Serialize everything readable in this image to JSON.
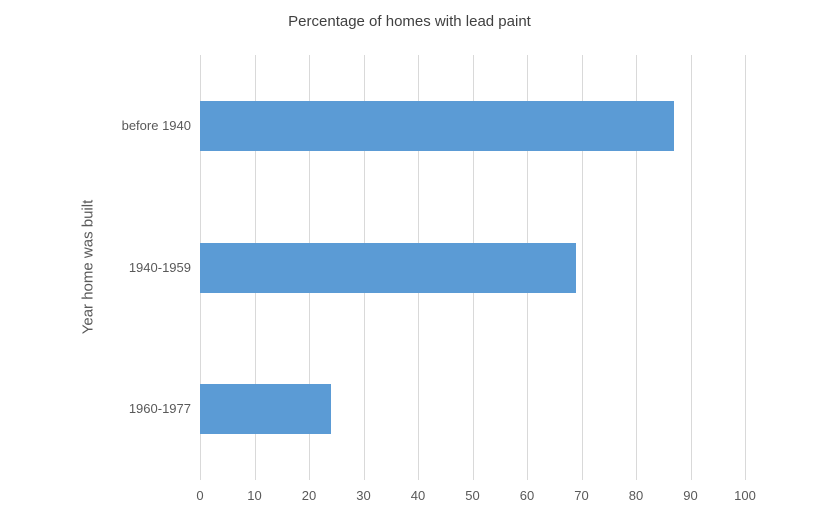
{
  "chart_data": {
    "type": "bar",
    "orientation": "horizontal",
    "title": "Percentage of homes with lead paint",
    "xlabel": "",
    "ylabel": "Year home was built",
    "categories": [
      "before 1940",
      "1940-1959",
      "1960-1977"
    ],
    "values": [
      87,
      69,
      24
    ],
    "xlim": [
      0,
      100
    ],
    "xticks": [
      0,
      10,
      20,
      30,
      40,
      50,
      60,
      70,
      80,
      90,
      100
    ],
    "grid": "vertical-only",
    "legend": "none",
    "colors": {
      "bar": "#5B9BD5",
      "gridline": "#D9D9D9",
      "axis_text": "#595959",
      "title_text": "#404040",
      "background": "#FFFFFF"
    }
  }
}
